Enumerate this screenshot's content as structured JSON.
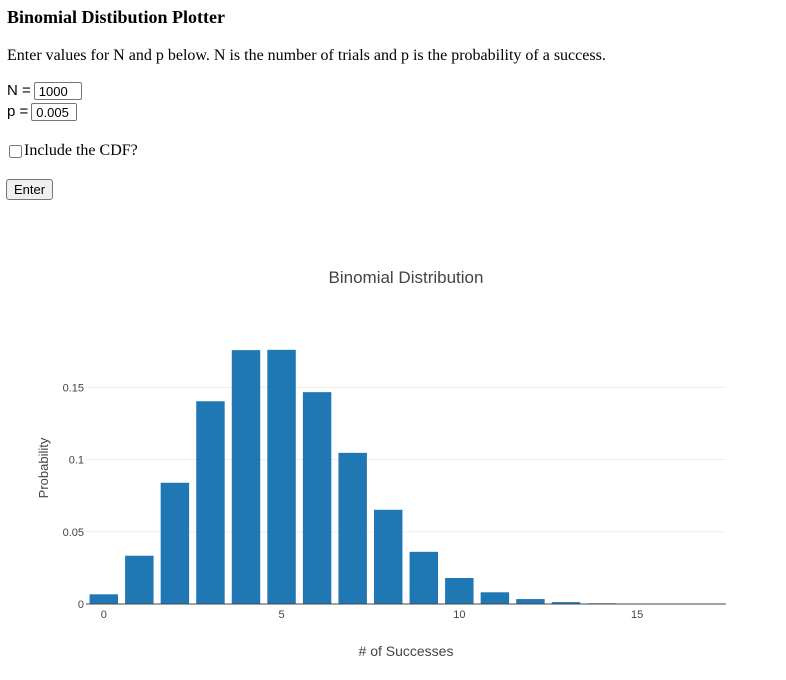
{
  "page": {
    "heading": "Binomial Distibution Plotter",
    "intro": "Enter values for N and p below. N is the number of trials and p is the probability of a success."
  },
  "form": {
    "n_label": "N =",
    "n_value": "1000",
    "p_label": "p =",
    "p_value": "0.005",
    "cdf_label": "Include the CDF?",
    "cdf_checked": false,
    "enter_label": "Enter"
  },
  "colors": {
    "bar": "#1f77b4",
    "grid": "#eeeeee",
    "tick_text": "#444444"
  },
  "chart_data": {
    "type": "bar",
    "title": "Binomial Distribution",
    "xlabel": "# of Successes",
    "ylabel": "Probability",
    "x": [
      0,
      1,
      2,
      3,
      4,
      5,
      6,
      7,
      8,
      9,
      10,
      11,
      12,
      13,
      14,
      15,
      16,
      17
    ],
    "values": [
      0.0067,
      0.0334,
      0.0839,
      0.1403,
      0.1757,
      0.1759,
      0.1466,
      0.1046,
      0.0652,
      0.0361,
      0.018,
      0.0081,
      0.0034,
      0.0013,
      0.0005,
      0.0002,
      0.0001,
      0.0
    ],
    "xlim": [
      -0.5,
      17.5
    ],
    "ylim": [
      0,
      0.2
    ],
    "xticks": [
      0,
      5,
      10,
      15
    ],
    "yticks": [
      0,
      0.05,
      0.1,
      0.15
    ],
    "ytick_labels": [
      "0",
      "0.05",
      "0.1",
      "0.15"
    ],
    "grid": true,
    "legend": false
  }
}
